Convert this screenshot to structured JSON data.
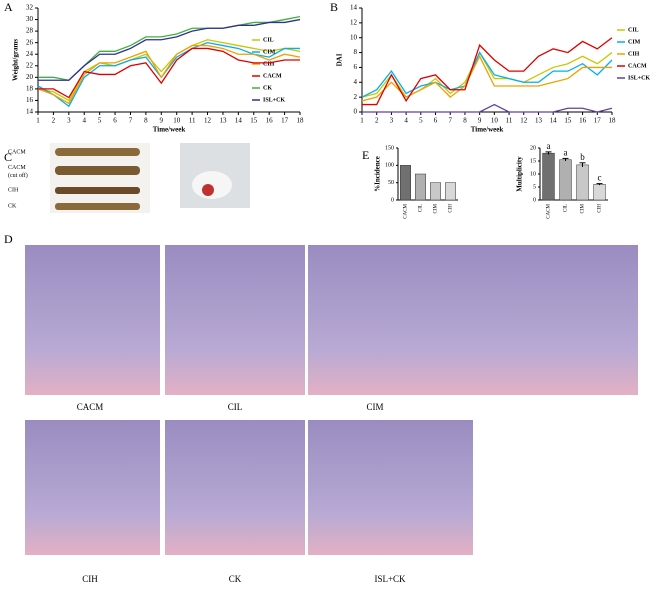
{
  "chart_data": [
    {
      "type": "line",
      "xlabel": "Time/week",
      "ylabel": "Weight/grams",
      "x": [
        1,
        2,
        3,
        4,
        5,
        6,
        7,
        8,
        9,
        10,
        11,
        12,
        13,
        14,
        15,
        16,
        17,
        18
      ],
      "xlim": [
        1,
        18
      ],
      "xticks": [
        1,
        2,
        3,
        4,
        5,
        6,
        7,
        8,
        9,
        10,
        11,
        12,
        13,
        14,
        15,
        16,
        17,
        18
      ],
      "ylim": [
        14,
        32
      ],
      "yticks": [
        14,
        16,
        18,
        20,
        22,
        24,
        26,
        28,
        30,
        32
      ],
      "series": [
        {
          "name": "CIL",
          "color": "#c8c800",
          "values": [
            18,
            17.5,
            16,
            21,
            22.5,
            22,
            23,
            24,
            21,
            24,
            25.5,
            26.5,
            26,
            25.5,
            25,
            24.5,
            25,
            24.5
          ]
        },
        {
          "name": "CIM",
          "color": "#00b0f0",
          "values": [
            18.5,
            17,
            15,
            20,
            22,
            22,
            23,
            23.5,
            20,
            23.5,
            25,
            26,
            25.5,
            25,
            24,
            23.5,
            25,
            25
          ]
        },
        {
          "name": "CIH",
          "color": "#f0a000",
          "values": [
            18,
            17,
            15.5,
            20.5,
            22.5,
            22.5,
            23.5,
            24.5,
            20,
            24,
            25.5,
            25.5,
            25,
            24,
            24,
            23,
            24,
            23.5
          ]
        },
        {
          "name": "CACM",
          "color": "#e00000",
          "values": [
            18,
            18,
            16.5,
            21,
            20.5,
            20.5,
            22,
            22.5,
            19,
            23,
            25,
            25,
            24.5,
            23,
            22.5,
            22.5,
            23,
            23
          ]
        },
        {
          "name": "CK",
          "color": "#40b040",
          "values": [
            20,
            20,
            19.5,
            22,
            24.5,
            24.5,
            25.5,
            27,
            27,
            27.5,
            28.5,
            28.5,
            28.5,
            29,
            29.5,
            29.5,
            30,
            30.5
          ]
        },
        {
          "name": "ISL+CK",
          "color": "#303090",
          "values": [
            19.5,
            19.5,
            19.5,
            22,
            24,
            24,
            25,
            26.5,
            26.5,
            27,
            28,
            28.5,
            28.5,
            29,
            29,
            29.5,
            29.5,
            30
          ]
        }
      ]
    },
    {
      "type": "line",
      "xlabel": "Time/week",
      "ylabel": "DAI",
      "x": [
        1,
        2,
        3,
        4,
        5,
        6,
        7,
        8,
        9,
        10,
        11,
        12,
        13,
        14,
        15,
        16,
        17,
        18
      ],
      "xlim": [
        1,
        18
      ],
      "xticks": [
        1,
        2,
        3,
        4,
        5,
        6,
        7,
        8,
        9,
        10,
        11,
        12,
        13,
        14,
        15,
        16,
        17,
        18
      ],
      "ylim": [
        0,
        14
      ],
      "yticks": [
        0,
        2,
        4,
        6,
        8,
        10,
        12,
        14
      ],
      "series": [
        {
          "name": "CIL",
          "color": "#c8c800",
          "values": [
            2,
            2.5,
            5,
            2,
            3,
            4.5,
            2.5,
            4,
            8,
            4.5,
            4.5,
            4,
            5,
            6,
            6.5,
            7.5,
            6.5,
            8
          ]
        },
        {
          "name": "CIM",
          "color": "#00b0f0",
          "values": [
            2,
            3,
            5.5,
            2.5,
            3.5,
            4,
            3,
            3.5,
            8,
            5,
            4.5,
            4,
            4,
            5.5,
            5.5,
            6.5,
            5,
            7
          ]
        },
        {
          "name": "CIH",
          "color": "#f0a000",
          "values": [
            1.5,
            2,
            4,
            2,
            3,
            4,
            2,
            3.5,
            7.5,
            3.5,
            3.5,
            3.5,
            3.5,
            4,
            4.5,
            6,
            6,
            6
          ]
        },
        {
          "name": "CACM",
          "color": "#e00000",
          "values": [
            1,
            1,
            5,
            1.5,
            4.5,
            5,
            3,
            3,
            9,
            7,
            5.5,
            5.5,
            7.5,
            8.5,
            8,
            9.5,
            8.5,
            10
          ]
        },
        {
          "name": "ISL+CK",
          "color": "#6040a0",
          "values": [
            0,
            0,
            0,
            0,
            0,
            0,
            0,
            0,
            0,
            1,
            0,
            0,
            0,
            0,
            0.5,
            0.5,
            0,
            0.5
          ]
        }
      ]
    },
    {
      "type": "bar",
      "ylabel": "%Incidence",
      "categories": [
        "CACM",
        "CIL",
        "CIM",
        "CIH"
      ],
      "values": [
        100,
        75,
        50,
        50
      ],
      "colors": [
        "#707070",
        "#b0b0b0",
        "#c8c8c8",
        "#d8d8d8"
      ],
      "ylim": [
        0,
        150
      ],
      "yticks": [
        0,
        50,
        100,
        150
      ]
    },
    {
      "type": "bar",
      "ylabel": "Multiplicity",
      "categories": [
        "CACM",
        "CIL",
        "CIM",
        "CIH"
      ],
      "values": [
        18,
        15.5,
        13.5,
        6
      ],
      "errors": [
        0.5,
        0.5,
        0.8,
        0.3
      ],
      "annotations": [
        "a",
        "a",
        "b",
        "c"
      ],
      "colors": [
        "#707070",
        "#b0b0b0",
        "#c8c8c8",
        "#d8d8d8"
      ],
      "ylim": [
        0,
        20
      ],
      "yticks": [
        0,
        5,
        10,
        15,
        20
      ]
    }
  ],
  "panel_labels": [
    "A",
    "B",
    "C",
    "D",
    "E"
  ],
  "photos": {
    "c_labels": [
      "CACM",
      "CACM\n(cut off)",
      "CIH",
      "CK"
    ],
    "d_labels": [
      "CACM",
      "CIL",
      "CIM",
      "CIH",
      "CK",
      "ISL+CK"
    ]
  }
}
